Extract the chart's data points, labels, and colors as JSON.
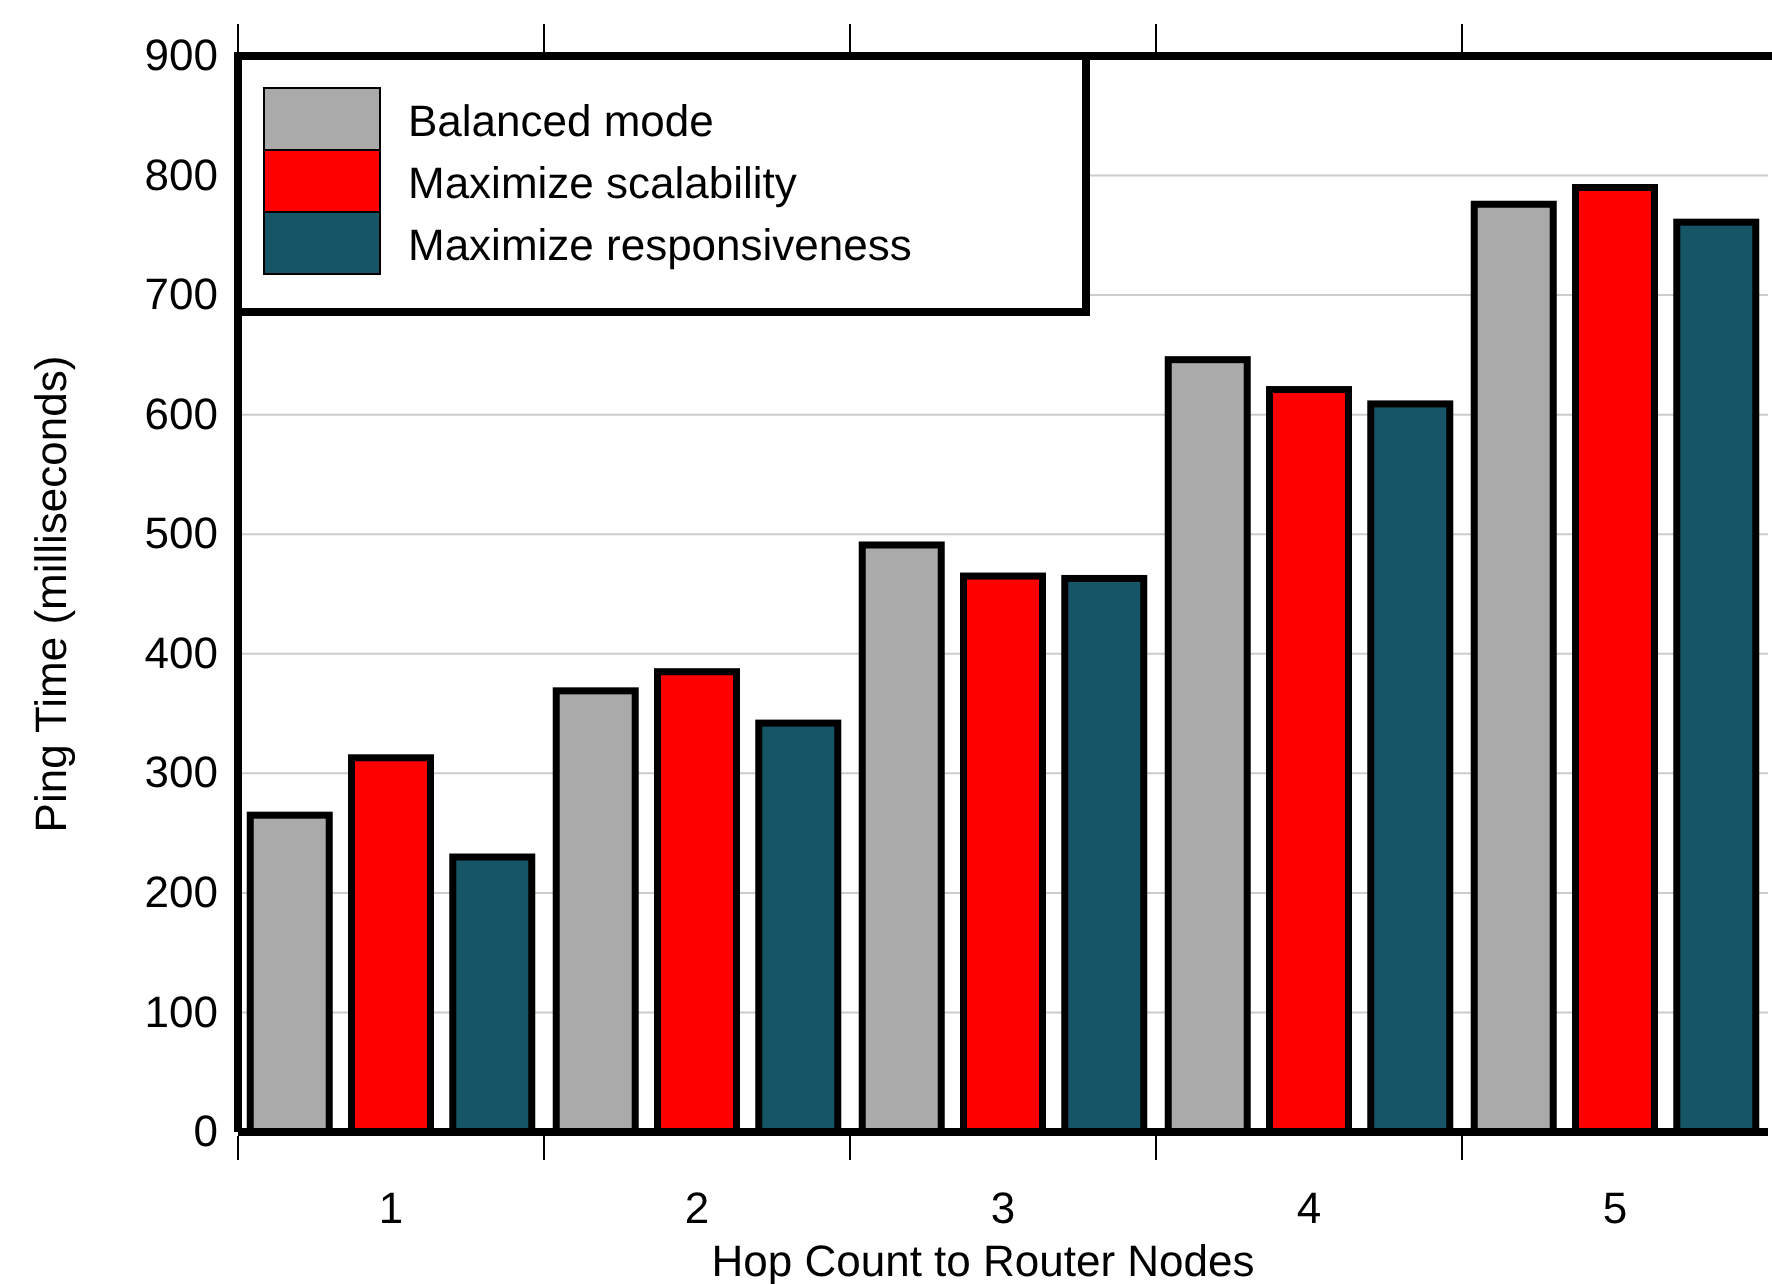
{
  "chart_data": {
    "type": "bar",
    "xlabel": "Hop Count to Router Nodes",
    "ylabel": "Ping Time (milliseconds)",
    "categories": [
      "1",
      "2",
      "3",
      "4",
      "5"
    ],
    "series": [
      {
        "name": "Balanced mode",
        "color": "#aaaaaa",
        "values": [
          265,
          369,
          491,
          646,
          776
        ]
      },
      {
        "name": "Maximize scalability",
        "color": "#ff0000",
        "values": [
          313,
          385,
          465,
          621,
          790
        ]
      },
      {
        "name": "Maximize responsiveness",
        "color": "#155566",
        "values": [
          230,
          342,
          463,
          609,
          761
        ]
      }
    ],
    "ylim": [
      0,
      900
    ],
    "yticks": [
      0,
      100,
      200,
      300,
      400,
      500,
      600,
      700,
      800,
      900
    ],
    "grid": "y",
    "legend": "top left"
  }
}
